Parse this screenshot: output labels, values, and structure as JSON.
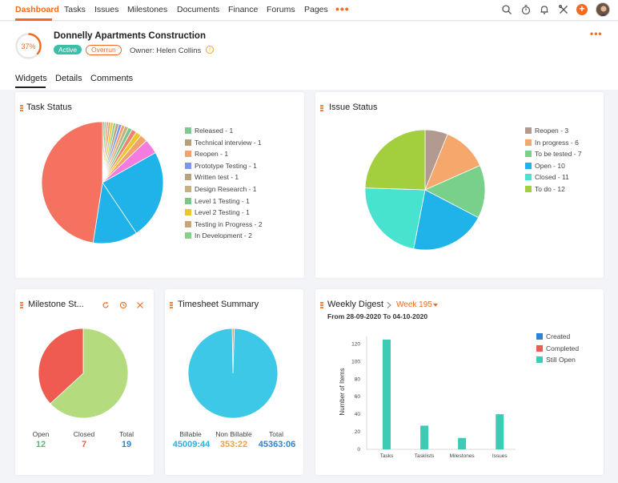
{
  "nav": {
    "items": [
      "Dashboard",
      "Tasks",
      "Issues",
      "Milestones",
      "Documents",
      "Finance",
      "Forums",
      "Pages"
    ],
    "more_label": "•••",
    "icons": [
      "search-icon",
      "timer-icon",
      "bell-icon",
      "tools-icon",
      "plus-icon",
      "avatar"
    ],
    "accent": "#f26b21"
  },
  "project": {
    "title": "Donnelly Apartments Construction",
    "progress_label": "37%",
    "progress": 0.37,
    "status": "Active",
    "flag": "Overrun",
    "owner_label": "Owner:",
    "owner": "Helen Collins",
    "more_label": "•••"
  },
  "tabs": [
    "Widgets",
    "Details",
    "Comments"
  ],
  "task_status": {
    "title": "Task Status",
    "legend": [
      {
        "label": "Released - 1",
        "color": "#7ec98f"
      },
      {
        "label": "Technical interview - 1",
        "color": "#b99f78"
      },
      {
        "label": "Reopen - 1",
        "color": "#f4a26b"
      },
      {
        "label": "Prototype Testing - 1",
        "color": "#7c96ef"
      },
      {
        "label": "Written test - 1",
        "color": "#b8a27e"
      },
      {
        "label": "Design Research - 1",
        "color": "#c6b084"
      },
      {
        "label": "Level 1 Testing - 1",
        "color": "#7bc68b"
      },
      {
        "label": "Level 2 Testing - 1",
        "color": "#ecc72a"
      },
      {
        "label": "Testing in Progress - 2",
        "color": "#c8a57a"
      },
      {
        "label": "In Development - 2",
        "color": "#88cf8d"
      }
    ]
  },
  "issue_status": {
    "title": "Issue Status",
    "legend": [
      {
        "label": "Reopen - 3",
        "color": "#b39a90"
      },
      {
        "label": "In progress - 6",
        "color": "#f6a76b"
      },
      {
        "label": "To be tested - 7",
        "color": "#78d08a"
      },
      {
        "label": "Open - 10",
        "color": "#1fb3ea"
      },
      {
        "label": "Closed - 11",
        "color": "#48e3cf"
      },
      {
        "label": "To do - 12",
        "color": "#a3cf3e"
      }
    ]
  },
  "milestone_status": {
    "title": "Milestone St...",
    "open_label": "Open",
    "open_value": "12",
    "open_color": "#5cb87a",
    "closed_label": "Closed",
    "closed_value": "7",
    "closed_color": "#ef5b50",
    "total_label": "Total",
    "total_value": "19",
    "total_color": "#2d84d6"
  },
  "timesheet": {
    "title": "Timesheet Summary",
    "billable_label": "Billable",
    "billable_value": "45009:44",
    "billable_color": "#2ab3e0",
    "nonbillable_label": "Non Billable",
    "nonbillable_value": "353:22",
    "nonbillable_color": "#f2a13a",
    "total_label": "Total",
    "total_value": "45363:06",
    "total_color": "#2d84d6"
  },
  "weekly": {
    "title": "Weekly Digest",
    "week_label": "Week 195",
    "range": "From 28-09-2020 To 04-10-2020",
    "legend": [
      {
        "label": "Created",
        "color": "#2d84d6"
      },
      {
        "label": "Completed",
        "color": "#ef5b50"
      },
      {
        "label": "Still Open",
        "color": "#3dcbb6"
      }
    ]
  },
  "chart_data": [
    {
      "type": "pie",
      "title": "Task Status",
      "slices": [
        {
          "label": "Reopen",
          "value": 3,
          "color": "#b39a90"
        },
        {
          "label": "In progress",
          "value": 6,
          "color": "#f6a76b"
        },
        {
          "label": "To be tested",
          "value": 7,
          "color": "#78d08a"
        },
        {
          "label": "Open",
          "value": 10,
          "color": "#1fb3ea"
        },
        {
          "label": "Closed",
          "value": 11,
          "color": "#48e3cf"
        },
        {
          "label": "To do",
          "value": 12,
          "color": "#a3cf3e"
        }
      ]
    },
    {
      "type": "pie",
      "title": "Milestone St...",
      "slices": [
        {
          "label": "Open",
          "value": 12,
          "color": "#b4db7e"
        },
        {
          "label": "Closed",
          "value": 7,
          "color": "#ef5b50"
        }
      ]
    },
    {
      "type": "pie",
      "title": "Timesheet Summary",
      "slices": [
        {
          "label": "Billable",
          "value": 45009.73,
          "color": "#3cc8e6"
        },
        {
          "label": "Non Billable",
          "value": 353.37,
          "color": "#f2a13a"
        }
      ]
    },
    {
      "type": "bar",
      "title": "Weekly Digest",
      "categories": [
        "Tasks",
        "Tasklists",
        "Milestones",
        "Issues"
      ],
      "series": [
        {
          "name": "Still Open",
          "values": [
            125,
            27,
            13,
            40
          ],
          "color": "#3dcbb6"
        }
      ],
      "ylabel": "Number of Items",
      "ylim": [
        0,
        125
      ],
      "yticks": [
        0,
        20,
        40,
        60,
        80,
        100,
        120
      ]
    }
  ],
  "task_pie": {
    "slices": [
      {
        "value": 48,
        "color": "#f4725f"
      },
      {
        "value": 24,
        "color": "#1fb3ea"
      },
      {
        "value": 12,
        "color": "#1fb3ea"
      },
      {
        "value": 4,
        "color": "#f57be0"
      },
      {
        "value": 2,
        "color": "#f4a26b"
      },
      {
        "value": 1.5,
        "color": "#ecc72a"
      },
      {
        "value": 1.3,
        "color": "#f47f72"
      },
      {
        "value": 1.1,
        "color": "#7bc68b"
      },
      {
        "value": 1,
        "color": "#c6b084"
      },
      {
        "value": 0.9,
        "color": "#f4a26b"
      },
      {
        "value": 0.8,
        "color": "#7c96ef"
      },
      {
        "value": 0.8,
        "color": "#b8a27e"
      },
      {
        "value": 0.7,
        "color": "#88cf8d"
      },
      {
        "value": 0.7,
        "color": "#ecc72a"
      },
      {
        "value": 0.6,
        "color": "#c8a57a"
      },
      {
        "value": 0.6,
        "color": "#f4a26b"
      },
      {
        "value": 0.5,
        "color": "#7ec98f"
      },
      {
        "value": 0.5,
        "color": "#b99f78"
      }
    ]
  }
}
